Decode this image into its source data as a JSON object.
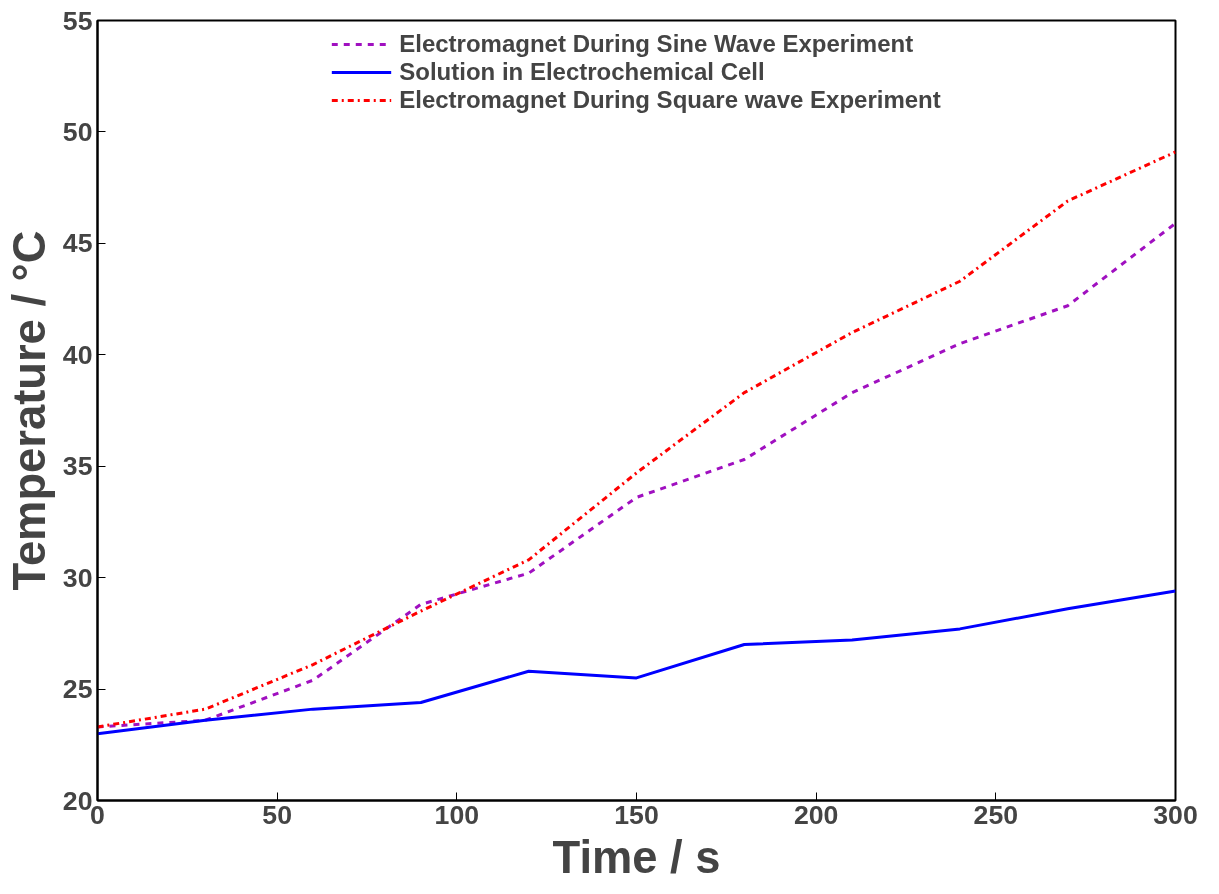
{
  "chart_data": {
    "type": "line",
    "xlabel": "Time / s",
    "ylabel": "Temperature / °C",
    "x": [
      0,
      30,
      60,
      90,
      120,
      150,
      180,
      210,
      240,
      270,
      300
    ],
    "series": [
      {
        "name": "Electromagnet During Sine Wave Experiment",
        "color": "#a010c0",
        "line_style": "dashed",
        "values": [
          23.3,
          23.6,
          25.4,
          28.8,
          30.2,
          33.6,
          35.3,
          38.3,
          40.5,
          42.2,
          45.9
        ]
      },
      {
        "name": "Solution in Electrochemical Cell",
        "color": "#0000ff",
        "line_style": "solid",
        "values": [
          23.0,
          23.6,
          24.1,
          24.4,
          25.8,
          25.5,
          27.0,
          27.2,
          27.7,
          28.6,
          29.4
        ]
      },
      {
        "name": "Electromagnet During Square wave Experiment",
        "color": "#ff0000",
        "line_style": "dashdot",
        "values": [
          23.3,
          24.1,
          26.1,
          28.5,
          30.8,
          34.7,
          38.3,
          41.0,
          43.3,
          46.9,
          49.1
        ]
      }
    ],
    "xlim": [
      0,
      300
    ],
    "xticks": [
      0,
      50,
      100,
      150,
      200,
      250,
      300
    ],
    "ylim": [
      20,
      55
    ],
    "yticks": [
      20,
      25,
      30,
      35,
      40,
      45,
      50,
      55
    ],
    "grid": false,
    "legend": "top",
    "marker": "none"
  }
}
